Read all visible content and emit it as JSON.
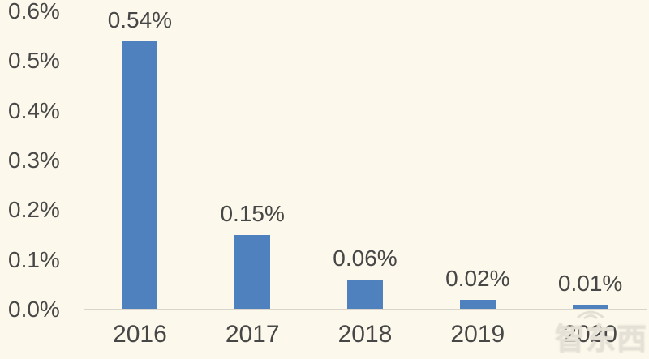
{
  "chart_data": {
    "type": "bar",
    "title": "",
    "categories": [
      "2016",
      "2017",
      "2018",
      "2019",
      "2020"
    ],
    "values": [
      0.54,
      0.15,
      0.06,
      0.02,
      0.01
    ],
    "data_labels": [
      "0.54%",
      "0.15%",
      "0.06%",
      "0.02%",
      "0.01%"
    ],
    "y_ticks": [
      "0.6%",
      "0.5%",
      "0.4%",
      "0.3%",
      "0.2%",
      "0.1%",
      "0.0%"
    ],
    "ylim": [
      0,
      0.6
    ],
    "grid": false,
    "legend_position": "none",
    "colors": {
      "bar": "#4E81BD",
      "background": "#FCF8EB",
      "text": "#474747",
      "axis_line": "#D9D5CA"
    }
  },
  "watermark": {
    "text": "智东西"
  }
}
